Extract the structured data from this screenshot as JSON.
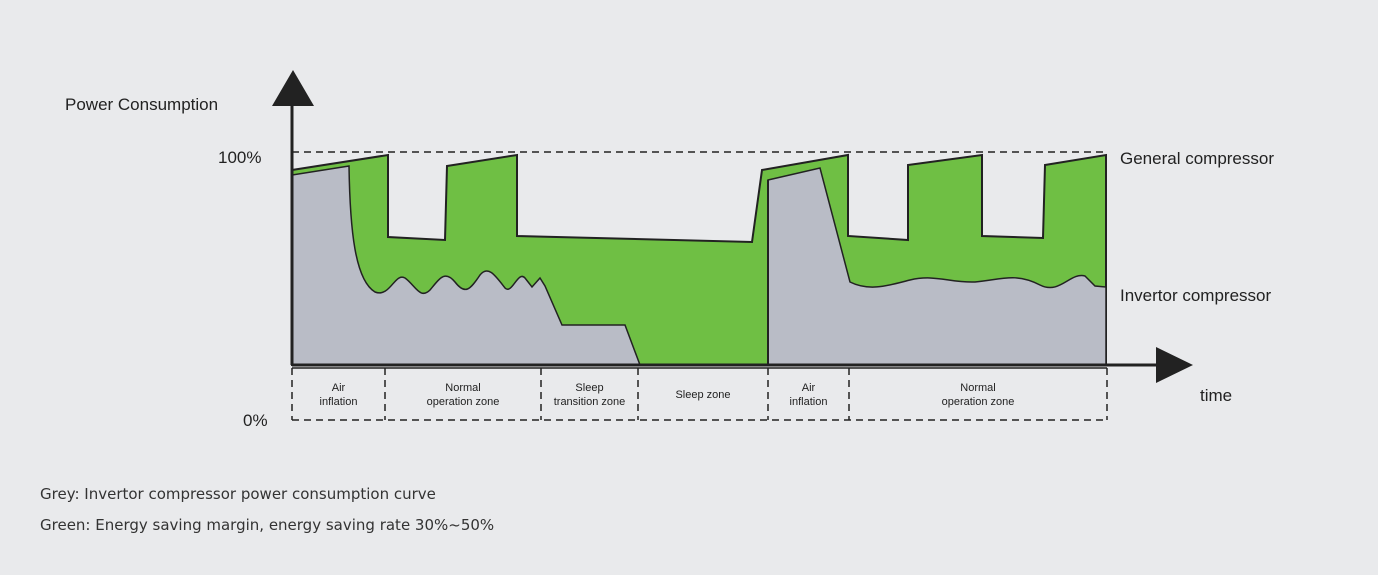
{
  "axis": {
    "y_label": "Power Consumption",
    "y_top": "100%",
    "y_bottom": "0%",
    "x_label": "time"
  },
  "curve_labels": {
    "general": "General compressor",
    "invertor": "Invertor compressor"
  },
  "zones": [
    {
      "lines": [
        "Air",
        "inflation"
      ]
    },
    {
      "lines": [
        "Normal",
        "operation zone"
      ]
    },
    {
      "lines": [
        "Sleep",
        "transition zone"
      ]
    },
    {
      "lines": [
        "Sleep zone"
      ]
    },
    {
      "lines": [
        "Air",
        "inflation"
      ]
    },
    {
      "lines": [
        "Normal",
        "operation zone"
      ]
    }
  ],
  "legend": [
    "Grey: Invertor compressor power consumption curve",
    "Green: Energy saving margin, energy saving rate 30%~50%"
  ]
}
